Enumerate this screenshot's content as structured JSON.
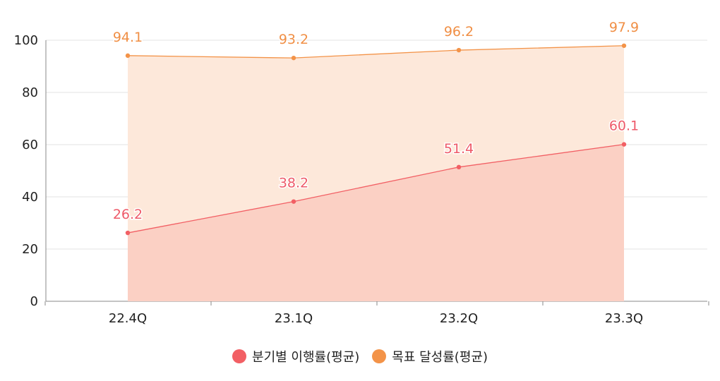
{
  "chart_data": {
    "type": "area",
    "categories": [
      "22.4Q",
      "23.1Q",
      "23.2Q",
      "23.3Q"
    ],
    "ylim": [
      0,
      100
    ],
    "yticks": [
      0,
      20,
      40,
      60,
      80,
      100
    ],
    "grid": true,
    "legend_position": "bottom",
    "series": [
      {
        "name": "분기별 이행률(평균)",
        "values": [
          26.2,
          38.2,
          51.4,
          60.1
        ],
        "labels": [
          "26.2",
          "38.2",
          "51.4",
          "60.1"
        ],
        "line_color": "#f25f64",
        "fill_color": "#fbd0c4",
        "label_color": "#ee5a69"
      },
      {
        "name": "목표 달성률(평균)",
        "values": [
          94.1,
          93.2,
          96.2,
          97.9
        ],
        "labels": [
          "94.1",
          "93.2",
          "96.2",
          "97.9"
        ],
        "line_color": "#f39348",
        "fill_color": "#fde8da",
        "label_color": "#f08f45"
      }
    ]
  },
  "legend": {
    "items": [
      {
        "label": "분기별 이행률(평균)",
        "color": "#f25f64"
      },
      {
        "label": "목표 달성률(평균)",
        "color": "#f39348"
      }
    ]
  }
}
